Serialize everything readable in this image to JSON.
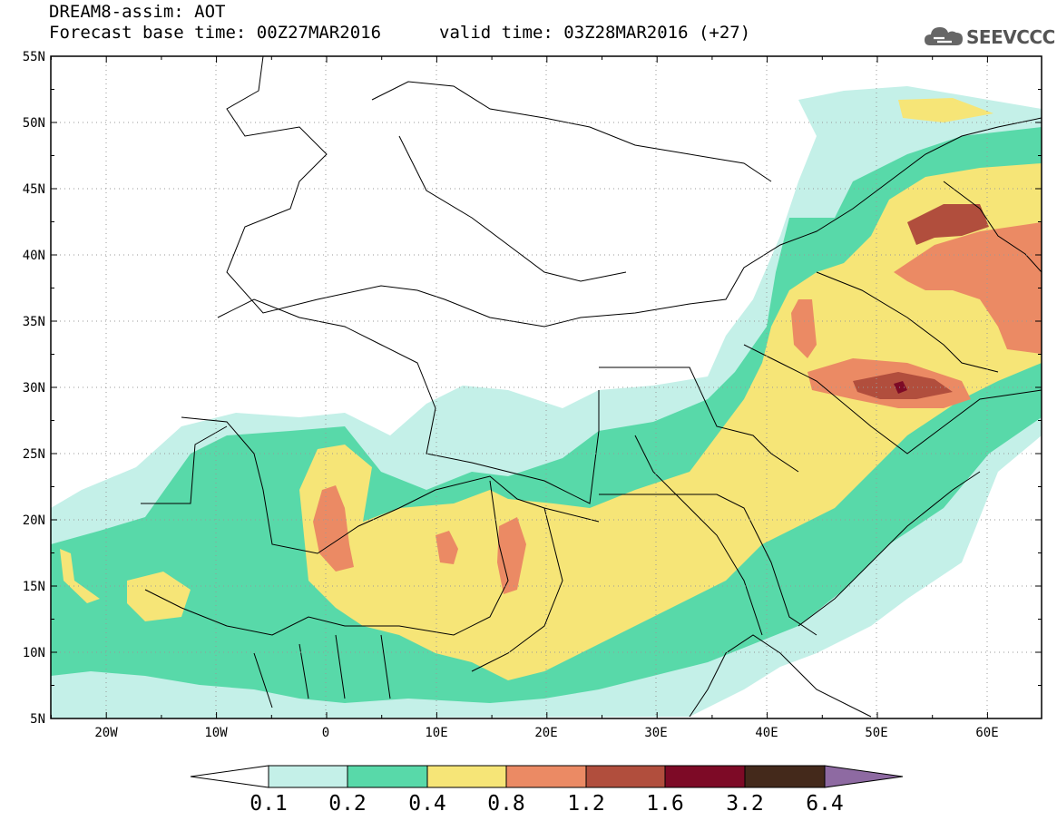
{
  "title": {
    "model_line": "DREAM8-assim: AOT",
    "base_time_line": "Forecast base time: 00Z27MAR2016",
    "valid_time_line": "valid time: 03Z28MAR2016 (+27)"
  },
  "logo": {
    "name": "cloud-logo-icon",
    "text": "SEEVCCC"
  },
  "axes": {
    "lat_labels": [
      "55N",
      "50N",
      "45N",
      "40N",
      "35N",
      "30N",
      "25N",
      "20N",
      "15N",
      "10N",
      "5N"
    ],
    "lon_labels": [
      "20W",
      "10W",
      "0",
      "10E",
      "20E",
      "30E",
      "40E",
      "50E",
      "60E"
    ]
  },
  "colorbar": {
    "labels": [
      "0.1",
      "0.2",
      "0.4",
      "0.8",
      "1.2",
      "1.6",
      "3.2",
      "6.4"
    ],
    "colors": [
      "#ffffff",
      "#c4f0e8",
      "#58d9a9",
      "#f6e577",
      "#eb8a64",
      "#b14e3d",
      "#7d0a26",
      "#44291b",
      "#8e6aa2"
    ]
  }
}
